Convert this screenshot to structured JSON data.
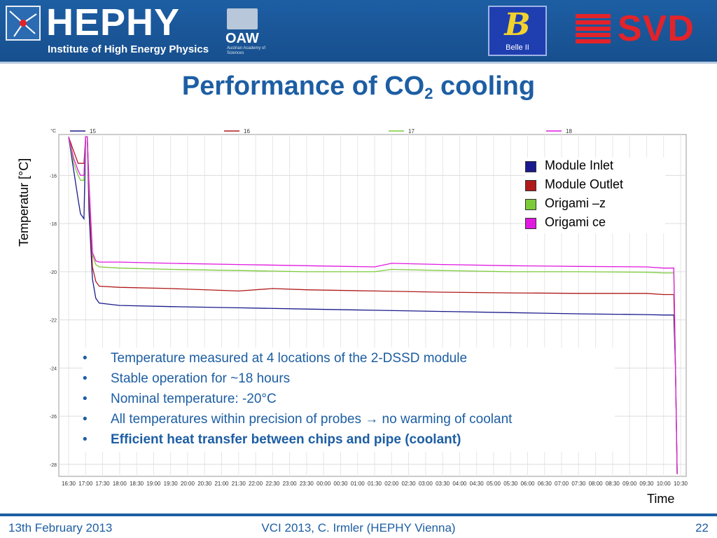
{
  "header": {
    "institute_name": "HEPHY",
    "institute_subtitle": "Institute of High Energy Physics",
    "academy_name": "OAW",
    "academy_subtitle": "Austrian Academy of Sciences",
    "experiment_mark": "B",
    "experiment_name": "Belle II",
    "detector_name": "SVD"
  },
  "slide": {
    "title_main": "Performance of CO",
    "title_sub": "2",
    "title_end": " cooling"
  },
  "bullets": [
    {
      "text": "Temperature measured at 4 locations of the 2-DSSD module",
      "bold": false
    },
    {
      "text": "Stable operation for ~18 hours",
      "bold": false
    },
    {
      "text": "Nominal temperature: -20°C",
      "bold": false
    },
    {
      "text": "All temperatures within precision of probes → no warming of coolant",
      "bold": false
    },
    {
      "text": "Efficient heat transfer between chips and pipe (coolant)",
      "bold": true
    }
  ],
  "bullet_symbol": "•",
  "footer": {
    "date": "13th February 2013",
    "event": "VCI 2013, C. Irmler (HEPHY Vienna)",
    "page": "22"
  },
  "chart_data": {
    "type": "line",
    "xlabel": "Time",
    "ylabel": "Temperatur [°C]",
    "unit_label": "°C",
    "ylim": [
      -28.5,
      -14.3
    ],
    "yticks": [
      -16,
      -18,
      -20,
      -22,
      -24,
      -26,
      -28
    ],
    "x_ticks": [
      "16:30",
      "17:00",
      "17:30",
      "18:00",
      "18:30",
      "19:00",
      "19:30",
      "20:00",
      "20:30",
      "21:00",
      "21:30",
      "22:00",
      "22:30",
      "23:00",
      "23:30",
      "00:00",
      "00:30",
      "01:00",
      "01:30",
      "02:00",
      "02:30",
      "03:00",
      "03:30",
      "04:00",
      "04:30",
      "05:00",
      "05:30",
      "06:00",
      "06:30",
      "07:00",
      "07:30",
      "08:00",
      "08:30",
      "09:00",
      "09:30",
      "10:00",
      "10:30"
    ],
    "grid": true,
    "legend_position": "top-right",
    "channel_labels": [
      "15",
      "16",
      "17",
      "18"
    ],
    "series": [
      {
        "name": "Module Inlet",
        "channel": "15",
        "color": "#1a1a8c",
        "x": [
          0.0,
          0.15,
          0.28,
          0.35,
          0.45,
          0.5,
          0.55,
          0.6,
          0.7,
          0.8,
          0.9,
          1.5,
          3,
          5,
          7,
          9,
          11,
          13,
          15,
          17,
          17.5,
          17.8,
          17.85,
          17.9
        ],
        "y": [
          -14.4,
          -15.8,
          -17.0,
          -17.6,
          -17.8,
          -14.4,
          -14.4,
          -17.5,
          -20.3,
          -21.1,
          -21.3,
          -21.4,
          -21.45,
          -21.5,
          -21.55,
          -21.6,
          -21.65,
          -21.7,
          -21.75,
          -21.78,
          -21.8,
          -21.8,
          -24.0,
          -28.4
        ]
      },
      {
        "name": "Module Outlet",
        "channel": "16",
        "color": "#b01a1a",
        "x": [
          0.0,
          0.15,
          0.28,
          0.35,
          0.45,
          0.5,
          0.55,
          0.6,
          0.7,
          0.8,
          0.9,
          1.5,
          3,
          5,
          6,
          7,
          9,
          11,
          13,
          15,
          17,
          17.5,
          17.8,
          17.85,
          17.9
        ],
        "y": [
          -14.4,
          -15.0,
          -15.5,
          -15.5,
          -15.5,
          -14.4,
          -14.4,
          -16.8,
          -19.8,
          -20.4,
          -20.6,
          -20.65,
          -20.7,
          -20.8,
          -20.7,
          -20.75,
          -20.8,
          -20.85,
          -20.88,
          -20.9,
          -20.9,
          -20.95,
          -20.95,
          -24.0,
          -28.4
        ]
      },
      {
        "name": "Origami –z",
        "channel": "17",
        "color": "#7ccc3a",
        "x": [
          0.0,
          0.15,
          0.28,
          0.35,
          0.45,
          0.5,
          0.55,
          0.6,
          0.7,
          0.8,
          0.9,
          1.5,
          3,
          5,
          7,
          9,
          9.5,
          11,
          13,
          15,
          17,
          17.5,
          17.8,
          17.85,
          17.9
        ],
        "y": [
          -14.4,
          -15.5,
          -16.0,
          -16.2,
          -16.2,
          -14.4,
          -14.4,
          -16.5,
          -19.3,
          -19.7,
          -19.8,
          -19.85,
          -19.9,
          -19.95,
          -20.0,
          -20.0,
          -19.9,
          -19.95,
          -20.0,
          -20.0,
          -20.02,
          -20.05,
          -20.05,
          -24.0,
          -28.4
        ]
      },
      {
        "name": "Origami ce",
        "channel": "18",
        "color": "#e01ae0",
        "x": [
          0.0,
          0.15,
          0.28,
          0.35,
          0.45,
          0.5,
          0.55,
          0.6,
          0.7,
          0.8,
          0.9,
          1.5,
          3,
          5,
          7,
          9,
          9.5,
          11,
          13,
          15,
          17,
          17.5,
          17.8,
          17.85,
          17.9
        ],
        "y": [
          -14.4,
          -15.3,
          -15.8,
          -16.0,
          -16.0,
          -14.4,
          -14.4,
          -16.3,
          -19.2,
          -19.55,
          -19.6,
          -19.6,
          -19.65,
          -19.7,
          -19.75,
          -19.8,
          -19.65,
          -19.7,
          -19.75,
          -19.78,
          -19.8,
          -19.85,
          -19.85,
          -24.0,
          -28.4
        ]
      }
    ]
  }
}
